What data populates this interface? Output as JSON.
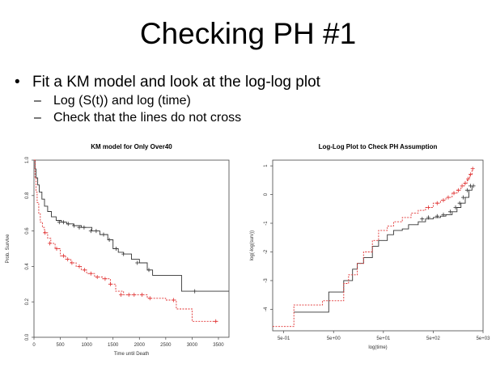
{
  "slide": {
    "title": "Checking PH #1",
    "bullet": "Fit a KM model and look at the log-log plot",
    "subbullets": [
      "Log (S(t)) and log (time)",
      "Check that the lines do not cross"
    ]
  },
  "chart_data": [
    {
      "type": "line",
      "title": "KM model for Only Over40",
      "xlabel": "Time until Death",
      "ylabel": "Prob. Survive",
      "xlim": [
        0,
        3700
      ],
      "ylim": [
        0,
        1
      ],
      "xticks": [
        "0",
        "500",
        "1000",
        "1500",
        "2000",
        "2500",
        "3000",
        "3500"
      ],
      "xtick_values": [
        0,
        500,
        1000,
        1500,
        2000,
        2500,
        3000,
        3500
      ],
      "yticks": [
        "0.0",
        "0.2",
        "0.4",
        "0.6",
        "0.8",
        "1.0"
      ],
      "ytick_values": [
        0,
        0.2,
        0.4,
        0.6,
        0.8,
        1.0
      ],
      "grid": false,
      "series": [
        {
          "color": "#333333",
          "dash": false,
          "x": [
            0,
            20,
            40,
            70,
            100,
            150,
            200,
            260,
            330,
            420,
            520,
            620,
            750,
            900,
            1000,
            1100,
            1250,
            1400,
            1500,
            1600,
            1700,
            1850,
            2000,
            2150,
            2250,
            2500,
            2800,
            3000,
            3200,
            3700
          ],
          "y": [
            1.0,
            0.95,
            0.9,
            0.86,
            0.82,
            0.78,
            0.74,
            0.71,
            0.68,
            0.66,
            0.65,
            0.64,
            0.63,
            0.62,
            0.62,
            0.6,
            0.58,
            0.55,
            0.5,
            0.48,
            0.47,
            0.44,
            0.42,
            0.38,
            0.35,
            0.35,
            0.26,
            0.26,
            0.26,
            0.26
          ],
          "censor_x": [
            480,
            560,
            650,
            760,
            860,
            950,
            1080,
            1180,
            1320,
            1430,
            1560,
            1700,
            1960,
            2180,
            3050
          ],
          "censor_y": [
            0.65,
            0.65,
            0.64,
            0.63,
            0.62,
            0.62,
            0.6,
            0.6,
            0.58,
            0.55,
            0.5,
            0.47,
            0.42,
            0.38,
            0.26
          ]
        },
        {
          "color": "#e03030",
          "dash": true,
          "x": [
            0,
            20,
            40,
            60,
            90,
            120,
            160,
            200,
            260,
            320,
            400,
            500,
            600,
            700,
            800,
            900,
            1000,
            1150,
            1300,
            1450,
            1550,
            1700,
            1850,
            2000,
            2150,
            2300,
            2500,
            2700,
            2900,
            3000,
            3300,
            3500
          ],
          "y": [
            1.0,
            0.9,
            0.82,
            0.76,
            0.7,
            0.65,
            0.62,
            0.59,
            0.56,
            0.53,
            0.5,
            0.46,
            0.44,
            0.42,
            0.4,
            0.38,
            0.36,
            0.34,
            0.33,
            0.3,
            0.26,
            0.24,
            0.24,
            0.24,
            0.22,
            0.22,
            0.21,
            0.16,
            0.16,
            0.09,
            0.09,
            0.09
          ],
          "censor_x": [
            210,
            300,
            430,
            560,
            640,
            720,
            860,
            960,
            1080,
            1200,
            1350,
            1450,
            1650,
            1800,
            1900,
            2050,
            2200,
            2650,
            3450
          ],
          "censor_y": [
            0.59,
            0.53,
            0.5,
            0.46,
            0.44,
            0.42,
            0.4,
            0.38,
            0.36,
            0.34,
            0.33,
            0.3,
            0.24,
            0.24,
            0.24,
            0.24,
            0.22,
            0.21,
            0.09
          ]
        }
      ]
    },
    {
      "type": "line",
      "title": "Log-Log Plot to Check PH Assumption",
      "xlabel": "log(time)",
      "ylabel": "log(-log(surv))",
      "x_scale": "log",
      "xlim": [
        0.3,
        5000
      ],
      "ylim": [
        -4.75,
        1.2
      ],
      "xticks": [
        "5e-01",
        "5e+00",
        "5e+01",
        "5e+02",
        "5e+03"
      ],
      "xtick_values": [
        0.5,
        5,
        50,
        500,
        5000
      ],
      "yticks": [
        "-4",
        "-3",
        "-2",
        "-1",
        "0",
        "1"
      ],
      "ytick_values": [
        -4,
        -3,
        -2,
        -1,
        0,
        1
      ],
      "grid": false,
      "series": [
        {
          "color": "#333333",
          "dash": false,
          "x": [
            0.8,
            2,
            4,
            6,
            8,
            12,
            15,
            20,
            30,
            40,
            60,
            80,
            120,
            160,
            250,
            350,
            500,
            700,
            900,
            1200,
            1500,
            1800,
            2200,
            2600,
            3000
          ],
          "y": [
            -4.1,
            -4.1,
            -3.4,
            -3.4,
            -3.0,
            -2.6,
            -2.4,
            -2.2,
            -1.8,
            -1.6,
            -1.4,
            -1.25,
            -1.2,
            -1.05,
            -0.95,
            -0.85,
            -0.8,
            -0.75,
            -0.7,
            -0.6,
            -0.45,
            -0.3,
            -0.1,
            0.15,
            0.3
          ],
          "censor_x": [
            300,
            400,
            600,
            800,
            1100,
            1400,
            1700,
            2000,
            2400,
            2800,
            3200
          ],
          "censor_y": [
            -0.85,
            -0.8,
            -0.75,
            -0.7,
            -0.6,
            -0.45,
            -0.3,
            -0.1,
            0.15,
            0.3,
            0.3
          ]
        },
        {
          "color": "#e03030",
          "dash": true,
          "x": [
            0.3,
            0.8,
            0.8,
            3,
            3,
            8,
            10,
            15,
            20,
            30,
            40,
            60,
            80,
            120,
            180,
            250,
            350,
            500,
            700,
            900,
            1200,
            1500,
            1800,
            2100,
            2400,
            2700,
            3000
          ],
          "y": [
            -4.6,
            -4.6,
            -3.85,
            -3.85,
            -3.7,
            -3.1,
            -2.8,
            -2.4,
            -2.0,
            -1.6,
            -1.25,
            -1.1,
            -0.95,
            -0.8,
            -0.65,
            -0.55,
            -0.45,
            -0.3,
            -0.2,
            -0.1,
            0.05,
            0.15,
            0.3,
            0.4,
            0.55,
            0.7,
            0.9
          ],
          "censor_x": [
            400,
            600,
            800,
            1000,
            1300,
            1600,
            1900,
            2200,
            2500,
            2800,
            3100
          ],
          "censor_y": [
            -0.45,
            -0.3,
            -0.2,
            -0.1,
            0.05,
            0.15,
            0.3,
            0.4,
            0.55,
            0.7,
            0.9
          ]
        }
      ]
    }
  ]
}
